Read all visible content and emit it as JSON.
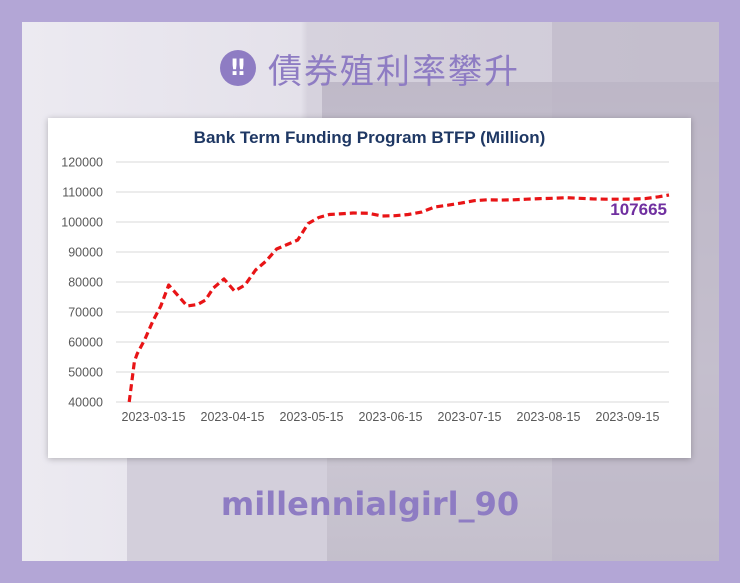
{
  "header": {
    "alert_icon": "exclamation-icon",
    "alert_glyph": "‼",
    "title": "債券殖利率攀升"
  },
  "chart_data": {
    "type": "line",
    "title": "Bank Term Funding Program BTFP (Million)",
    "xlabel": "",
    "ylabel": "",
    "ylim": [
      40000,
      120000
    ],
    "yticks": [
      40000,
      50000,
      60000,
      70000,
      80000,
      90000,
      100000,
      110000,
      120000
    ],
    "xticks": [
      "2023-03-15",
      "2023-04-15",
      "2023-05-15",
      "2023-06-15",
      "2023-07-15",
      "2023-08-15",
      "2023-09-15"
    ],
    "x_range_days": [
      0,
      210
    ],
    "series": [
      {
        "name": "BTFP",
        "color": "#e81416",
        "days": [
          5,
          7,
          8,
          11,
          14,
          17,
          20,
          24,
          27,
          31,
          34,
          37,
          41,
          45,
          49,
          53,
          57,
          61,
          65,
          69,
          73,
          77,
          81,
          85,
          90,
          96,
          101,
          106,
          111,
          116,
          121,
          126,
          131,
          136,
          141,
          146,
          151,
          156,
          161,
          166,
          171,
          176,
          181,
          186,
          191,
          196,
          201,
          206,
          210
        ],
        "values": [
          40000,
          53500,
          56000,
          61000,
          67000,
          72000,
          79000,
          75000,
          72000,
          72500,
          74000,
          78000,
          81000,
          77000,
          79000,
          84000,
          87000,
          91000,
          92500,
          94000,
          99500,
          101500,
          102500,
          102700,
          103000,
          102900,
          102000,
          102100,
          102500,
          103300,
          105000,
          105600,
          106300,
          107100,
          107400,
          107300,
          107400,
          107600,
          107800,
          107900,
          108100,
          107900,
          107700,
          107600,
          107600,
          107650,
          107800,
          108400,
          109000
        ]
      }
    ],
    "end_label": "107665"
  },
  "footer": {
    "handle": "millennialgirl_90"
  }
}
